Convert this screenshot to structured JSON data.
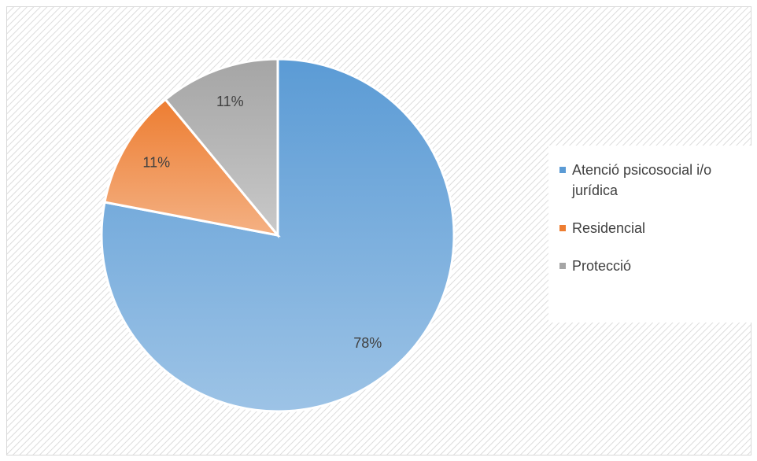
{
  "chart_data": {
    "type": "pie",
    "categories": [
      "Atenció psicosocial i/o jurídica",
      "Residencial",
      "Protecció"
    ],
    "values": [
      78,
      11,
      11
    ],
    "value_labels": [
      "78%",
      "11%",
      "11%"
    ],
    "colors": [
      "#5b9bd5",
      "#ed7d31",
      "#a5a5a5"
    ],
    "legend": "right"
  }
}
